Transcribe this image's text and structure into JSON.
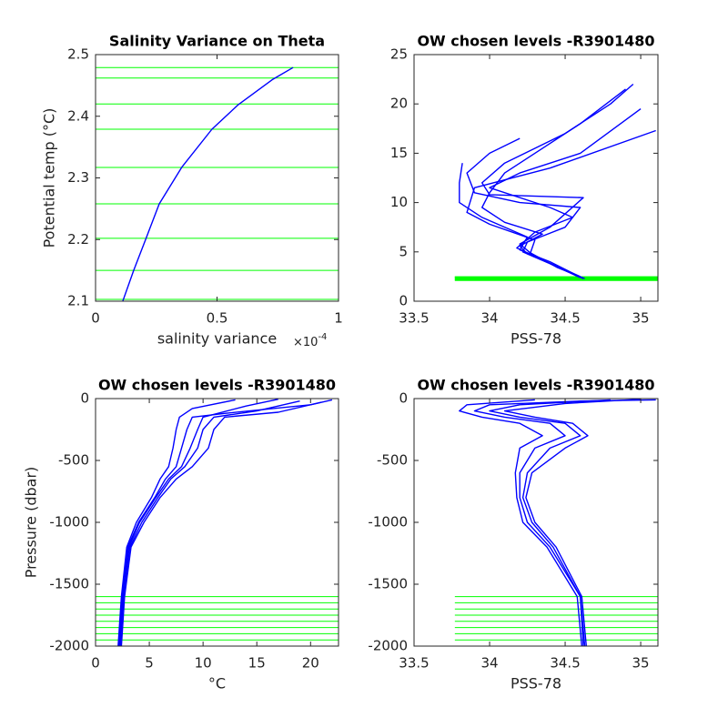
{
  "chart_data": [
    {
      "type": "line",
      "title": "Salinity Variance on Theta",
      "x_label": "salinity variance",
      "y_label": "Potential temp (°C)",
      "x_multiplier": {
        "base": "×10",
        "exponent": "-4"
      },
      "xlim": [
        0,
        1
      ],
      "xticks": [
        0,
        0.5,
        1
      ],
      "ylim": [
        2.1,
        2.5
      ],
      "yticks": [
        2.1,
        2.2,
        2.3,
        2.4,
        2.5
      ],
      "color": "#0000ff",
      "series": [
        {
          "x": [
            0.112,
            0.157,
            0.206,
            0.262,
            0.356,
            0.479,
            0.588,
            0.73,
            0.813
          ],
          "values": [
            2.1,
            2.15,
            2.2,
            2.258,
            2.318,
            2.379,
            2.419,
            2.46,
            2.479
          ]
        }
      ],
      "levels": {
        "color": "#00ff00",
        "values": [
          2.103,
          2.15,
          2.202,
          2.258,
          2.317,
          2.379,
          2.42,
          2.462,
          2.479
        ]
      }
    },
    {
      "type": "line",
      "title": "OW chosen levels -R3901480",
      "x_label": "PSS-78",
      "xlim": [
        33.5,
        35.114
      ],
      "xticks": [
        33.5,
        34,
        34.5,
        35
      ],
      "ylim": [
        0,
        25
      ],
      "yticks": [
        0,
        5,
        10,
        15,
        20,
        25
      ],
      "color": "#0000ff",
      "series": [
        {
          "x": [
            34.62,
            34.45,
            34.25,
            34.2,
            34.35,
            34.1,
            33.95,
            34.0,
            34.1,
            34.3,
            34.6,
            34.9
          ],
          "values": [
            2.3,
            3.5,
            4.8,
            5.6,
            6.8,
            8,
            9.5,
            11,
            13,
            15,
            18,
            21.5
          ]
        },
        {
          "x": [
            34.6,
            34.4,
            34.22,
            34.25,
            34.5,
            34.6,
            34.2,
            33.9,
            33.85,
            34.0,
            34.2
          ],
          "values": [
            2.4,
            3.8,
            5,
            6,
            7.5,
            9.5,
            10,
            11,
            13,
            15,
            16.5
          ]
        },
        {
          "x": [
            34.63,
            34.45,
            34.27,
            34.3,
            34.0,
            33.85,
            33.9,
            34.4,
            35.1
          ],
          "values": [
            2.3,
            3.4,
            4.9,
            6.2,
            7.8,
            9,
            11.5,
            13.5,
            17.3
          ]
        },
        {
          "x": [
            34.6,
            34.3,
            34.2,
            34.4,
            34.62,
            34.0,
            33.95,
            34.1,
            34.5,
            34.8,
            34.95
          ],
          "values": [
            2.5,
            4.5,
            5.8,
            7.5,
            10.5,
            10.8,
            12,
            14,
            17,
            20,
            22
          ]
        },
        {
          "x": [
            34.62,
            34.4,
            34.2,
            34.25,
            33.95,
            33.8,
            33.8,
            33.82
          ],
          "values": [
            2.3,
            4,
            5.2,
            6.5,
            8.5,
            10,
            12,
            14
          ]
        },
        {
          "x": [
            34.6,
            34.35,
            34.18,
            34.3,
            34.55,
            34.4,
            34.0,
            34.2,
            34.6,
            35.0
          ],
          "values": [
            2.4,
            4.2,
            5.4,
            7,
            8.5,
            9.5,
            11.5,
            13,
            15,
            19.5
          ]
        }
      ],
      "levels": {
        "color": "#00ff00",
        "xmin": 33.77,
        "values": [
          2.103,
          2.15,
          2.202,
          2.258,
          2.317,
          2.379,
          2.42,
          2.462,
          2.479
        ]
      }
    },
    {
      "type": "line",
      "title": "OW chosen levels -R3901480",
      "x_label": "°C",
      "y_label": "Pressure (dbar)",
      "xlim": [
        0,
        22.6
      ],
      "xticks": [
        0,
        5,
        10,
        15,
        20
      ],
      "ylim": [
        -2000,
        0
      ],
      "yticks": [
        -2000,
        -1500,
        -1000,
        -500,
        0
      ],
      "color": "#0000ff",
      "series": [
        {
          "x": [
            2.2,
            2.5,
            3,
            4,
            5.5,
            6.5,
            7.5,
            8,
            8.5,
            9,
            12,
            20,
            22
          ],
          "values": [
            -2000,
            -1600,
            -1200,
            -1000,
            -800,
            -650,
            -550,
            -400,
            -250,
            -150,
            -120,
            -50,
            -10
          ]
        },
        {
          "x": [
            2.3,
            2.6,
            3.2,
            4.3,
            5.8,
            7,
            8.3,
            9.5,
            10,
            11,
            15,
            19
          ],
          "values": [
            -2000,
            -1600,
            -1200,
            -1000,
            -800,
            -650,
            -550,
            -400,
            -250,
            -150,
            -100,
            -20
          ]
        },
        {
          "x": [
            2.1,
            2.4,
            2.9,
            3.8,
            5.2,
            6,
            6.8,
            7.2,
            7.5,
            7.8,
            9,
            13
          ],
          "values": [
            -2000,
            -1600,
            -1200,
            -1000,
            -800,
            -650,
            -550,
            -400,
            -250,
            -150,
            -80,
            -10
          ]
        },
        {
          "x": [
            2.4,
            2.7,
            3.3,
            4.5,
            6,
            7.5,
            9,
            10.5,
            11,
            12,
            17,
            21
          ],
          "values": [
            -2000,
            -1600,
            -1200,
            -1000,
            -800,
            -650,
            -550,
            -400,
            -250,
            -150,
            -110,
            -30
          ]
        },
        {
          "x": [
            2.2,
            2.5,
            3.1,
            4.1,
            5.6,
            6.8,
            8,
            8.8,
            9.5,
            10,
            14,
            17
          ],
          "values": [
            -2000,
            -1600,
            -1200,
            -1000,
            -800,
            -650,
            -550,
            -400,
            -250,
            -150,
            -60,
            -5
          ]
        }
      ],
      "levels": {
        "color": "#00ff00",
        "values": [
          -1600,
          -1650,
          -1700,
          -1750,
          -1800,
          -1850,
          -1900,
          -1950
        ]
      }
    },
    {
      "type": "line",
      "title": "OW chosen levels -R3901480",
      "x_label": "PSS-78",
      "xlim": [
        33.5,
        35.114
      ],
      "xticks": [
        33.5,
        34,
        34.5,
        35
      ],
      "ylim": [
        -2000,
        0
      ],
      "yticks": [
        -2000,
        -1500,
        -1000,
        -500,
        0
      ],
      "color": "#0000ff",
      "series": [
        {
          "x": [
            34.62,
            34.6,
            34.4,
            34.25,
            34.2,
            34.2,
            34.3,
            34.5,
            34.4,
            34.1,
            33.9,
            34.0,
            34.6,
            35.1
          ],
          "values": [
            -2000,
            -1600,
            -1200,
            -1000,
            -800,
            -600,
            -400,
            -300,
            -200,
            -150,
            -100,
            -50,
            -20,
            -10
          ]
        },
        {
          "x": [
            34.63,
            34.6,
            34.42,
            34.28,
            34.22,
            34.25,
            34.4,
            34.6,
            34.5,
            34.2,
            34.0,
            34.2,
            34.8
          ],
          "values": [
            -2000,
            -1600,
            -1200,
            -1000,
            -800,
            -600,
            -400,
            -300,
            -200,
            -150,
            -100,
            -50,
            -10
          ]
        },
        {
          "x": [
            34.61,
            34.58,
            34.38,
            34.22,
            34.18,
            34.17,
            34.2,
            34.35,
            34.2,
            33.95,
            33.8,
            33.85,
            34.3
          ],
          "values": [
            -2000,
            -1600,
            -1200,
            -1000,
            -800,
            -600,
            -400,
            -300,
            -200,
            -150,
            -100,
            -50,
            -10
          ]
        },
        {
          "x": [
            34.64,
            34.61,
            34.44,
            34.3,
            34.24,
            34.28,
            34.5,
            34.65,
            34.55,
            34.3,
            34.1,
            34.5,
            35.0
          ],
          "values": [
            -2000,
            -1600,
            -1200,
            -1000,
            -800,
            -600,
            -400,
            -300,
            -200,
            -150,
            -100,
            -40,
            -5
          ]
        }
      ],
      "levels": {
        "color": "#00ff00",
        "xmin": 33.77,
        "values": [
          -1600,
          -1650,
          -1700,
          -1750,
          -1800,
          -1850,
          -1900,
          -1950
        ]
      }
    }
  ]
}
